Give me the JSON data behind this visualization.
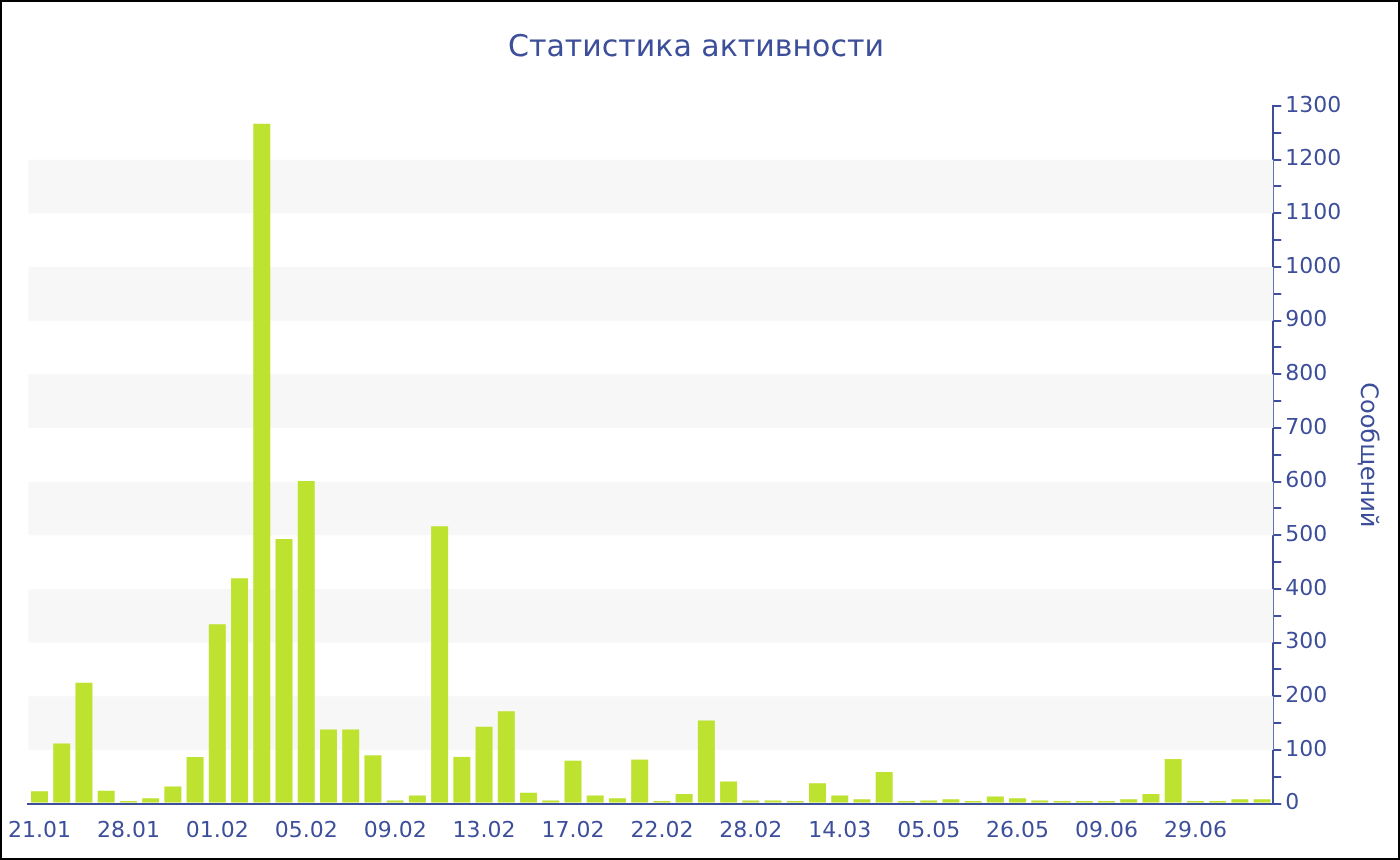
{
  "chart_data": {
    "type": "bar",
    "title": "Статистика активности",
    "ylabel": "Сообщений",
    "categories": [
      "21.01",
      null,
      null,
      null,
      "28.01",
      null,
      null,
      null,
      "01.02",
      null,
      null,
      null,
      "05.02",
      null,
      null,
      null,
      "09.02",
      null,
      null,
      null,
      "13.02",
      null,
      null,
      null,
      "17.02",
      null,
      null,
      null,
      "22.02",
      null,
      null,
      null,
      "28.02",
      null,
      null,
      null,
      "14.03",
      null,
      null,
      null,
      "05.05",
      null,
      null,
      null,
      "26.05",
      null,
      null,
      null,
      "09.06",
      null,
      null,
      null,
      "29.06",
      null,
      null,
      null
    ],
    "values": [
      23,
      112,
      225,
      24,
      5,
      10,
      32,
      87,
      334,
      420,
      1267,
      493,
      601,
      138,
      138,
      90,
      6,
      15,
      517,
      87,
      143,
      172,
      20,
      6,
      80,
      15,
      10,
      82,
      5,
      18,
      155,
      41,
      6,
      6,
      5,
      38,
      15,
      8,
      59,
      5,
      6,
      8,
      5,
      13,
      10,
      6,
      5,
      5,
      5,
      8,
      18,
      83,
      5,
      5,
      8,
      8
    ],
    "color": "#bde22f",
    "ylim": [
      0,
      1300
    ],
    "yticks": [
      0,
      {
        "value": 50,
        "label": null
      },
      100,
      {
        "value": 150,
        "label": null
      },
      200,
      {
        "value": 250,
        "label": null
      },
      300,
      {
        "value": 350,
        "label": null
      },
      400,
      {
        "value": 450,
        "label": null
      },
      500,
      {
        "value": 550,
        "label": null
      },
      600,
      {
        "value": 650,
        "label": null
      },
      700,
      {
        "value": 750,
        "label": null
      },
      800,
      {
        "value": 850,
        "label": null
      },
      900,
      {
        "value": 950,
        "label": null
      },
      1000,
      {
        "value": 1050,
        "label": null
      },
      1100,
      {
        "value": 1150,
        "label": null
      },
      1200,
      {
        "value": 1250,
        "label": null
      },
      1300
    ],
    "legend": false
  }
}
